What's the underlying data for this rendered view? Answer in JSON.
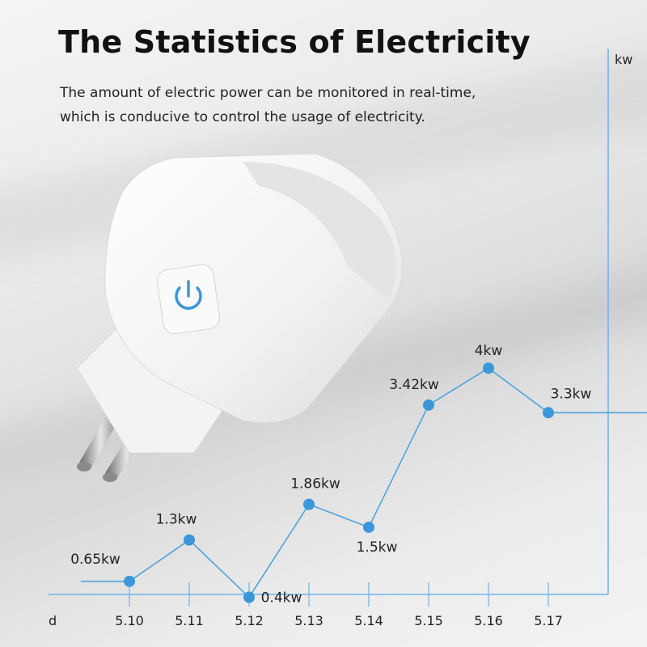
{
  "header": {
    "title": "The Statistics of Electricity",
    "subtitle_line1": "The amount of electric power can be monitored in real-time,",
    "subtitle_line2": "which is conducive to control the usage of electricity."
  },
  "colors": {
    "line": "#4fa3dc",
    "point": "#3b97d8",
    "axis": "#6fb4e6",
    "text": "#222222"
  },
  "chart_data": {
    "type": "line",
    "xlabel": "d",
    "ylabel": "kw",
    "categories": [
      "5.10",
      "5.11",
      "5.12",
      "5.13",
      "5.14",
      "5.15",
      "5.16",
      "5.17"
    ],
    "values": [
      0.65,
      1.3,
      0.4,
      1.86,
      1.5,
      3.42,
      4,
      3.3
    ],
    "data_labels": [
      "0.65kw",
      "1.3kw",
      "0.4kw",
      "1.86kw",
      "1.5kw",
      "3.42kw",
      "4kw",
      "3.3kw"
    ],
    "grid": false,
    "legend": "none"
  }
}
